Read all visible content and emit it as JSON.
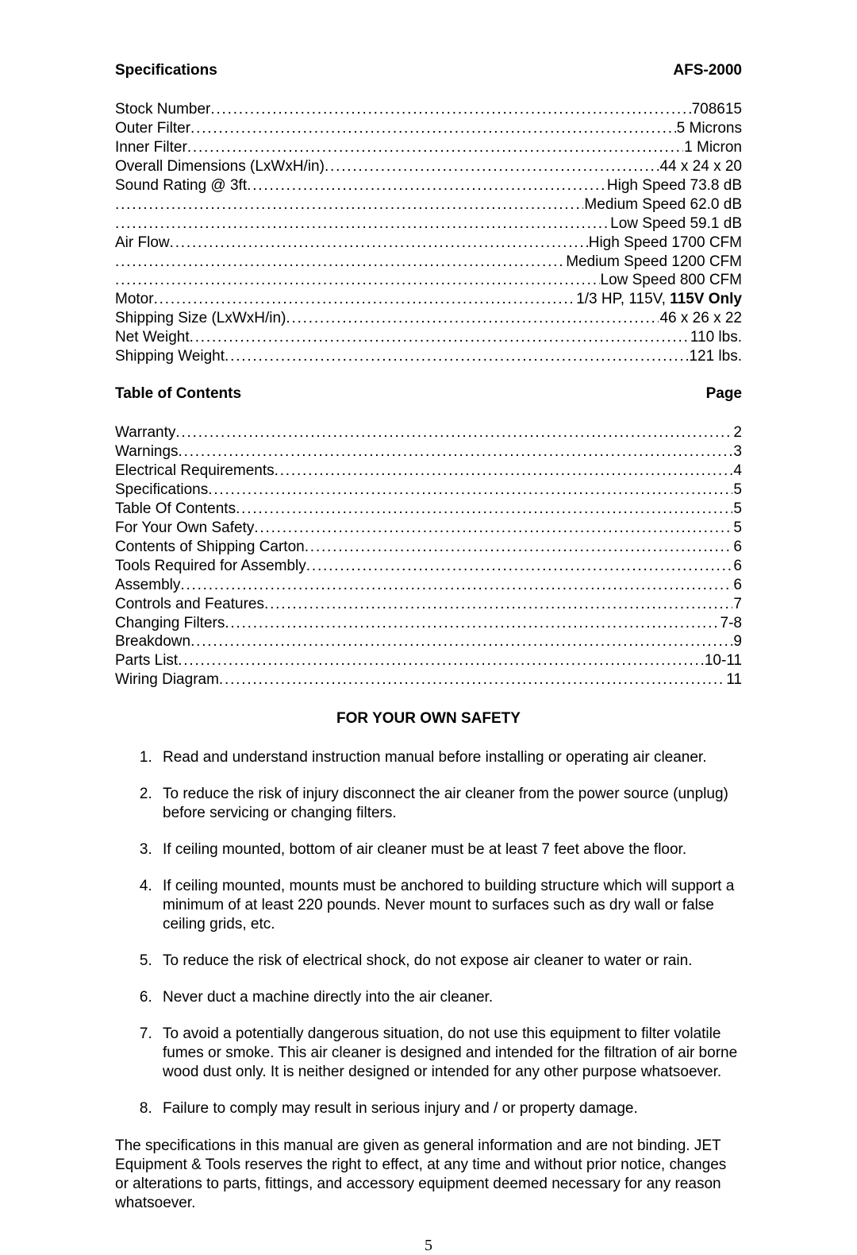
{
  "typography": {
    "body_font": "Arial",
    "body_size_pt": 14,
    "heading_weight": "bold",
    "text_color": "#000000",
    "background_color": "#ffffff",
    "page_number_font": "Times New Roman"
  },
  "specifications": {
    "heading_left": "Specifications",
    "heading_right": "AFS-2000",
    "rows": [
      {
        "label": "Stock Number",
        "value": "708615"
      },
      {
        "label": "Outer Filter",
        "value": "5 Microns"
      },
      {
        "label": "Inner Filter",
        "value": "1 Micron"
      },
      {
        "label": "Overall Dimensions (LxWxH/in)",
        "value": "44 x 24 x 20"
      },
      {
        "label": "Sound Rating @ 3ft",
        "value": "High Speed 73.8 dB"
      },
      {
        "label": "",
        "value": "Medium Speed 62.0 dB"
      },
      {
        "label": "",
        "value": "Low Speed 59.1 dB"
      },
      {
        "label": "Air Flow",
        "value": "High Speed 1700 CFM"
      },
      {
        "label": "",
        "value": "Medium Speed 1200 CFM"
      },
      {
        "label": "",
        "value": "Low Speed 800 CFM"
      },
      {
        "label": "Motor",
        "value": "1/3 HP, 115V, ",
        "value_bold_suffix": "115V Only"
      },
      {
        "label": "Shipping Size (LxWxH/in)",
        "value": "46 x 26 x 22"
      },
      {
        "label": "Net Weight",
        "value": "110 lbs."
      },
      {
        "label": "Shipping Weight",
        "value": "121 lbs."
      }
    ]
  },
  "toc": {
    "heading_left": "Table of Contents",
    "heading_right": "Page",
    "rows": [
      {
        "label": "Warranty",
        "value": "2"
      },
      {
        "label": "Warnings",
        "value": "3"
      },
      {
        "label": "Electrical Requirements",
        "value": "4"
      },
      {
        "label": "Specifications",
        "value": "5"
      },
      {
        "label": "Table Of Contents",
        "value": "5"
      },
      {
        "label": "For Your Own Safety",
        "value": "5"
      },
      {
        "label": "Contents of Shipping Carton",
        "value": "6"
      },
      {
        "label": "Tools Required for Assembly",
        "value": "6"
      },
      {
        "label": "Assembly",
        "value": "6"
      },
      {
        "label": "Controls and Features",
        "value": "7"
      },
      {
        "label": "Changing Filters",
        "value": "7-8"
      },
      {
        "label": "Breakdown",
        "value": "9"
      },
      {
        "label": "Parts List",
        "value": "10-11"
      },
      {
        "label": "Wiring Diagram",
        "value": "11"
      }
    ]
  },
  "safety": {
    "heading": "FOR YOUR OWN SAFETY",
    "items": [
      "Read and understand instruction manual before installing or operating air cleaner.",
      "To reduce the risk of injury disconnect the air cleaner from the power source (unplug) before servicing or changing filters.",
      "If ceiling mounted, bottom of air cleaner must be at least 7 feet above the floor.",
      "If ceiling mounted, mounts must be anchored to building structure which will support a minimum of at least 220 pounds.  Never mount to surfaces such as dry wall or false ceiling grids, etc.",
      "To reduce the risk of electrical shock, do not expose air cleaner to water or rain.",
      "Never duct a machine directly into the air cleaner.",
      "To avoid a potentially dangerous situation, do not use this equipment to filter volatile fumes or smoke.  This air cleaner is designed and intended for the filtration of air borne wood dust only.  It is neither designed or intended for any other purpose whatsoever.",
      "Failure to comply may result in serious injury and / or property damage."
    ]
  },
  "disclaimer": "The specifications in this manual are given as general information and are not binding.  JET Equipment & Tools reserves the right to effect, at any time and without prior notice, changes or alterations to parts, fittings, and accessory equipment deemed necessary for any reason whatsoever.",
  "page_number": "5"
}
